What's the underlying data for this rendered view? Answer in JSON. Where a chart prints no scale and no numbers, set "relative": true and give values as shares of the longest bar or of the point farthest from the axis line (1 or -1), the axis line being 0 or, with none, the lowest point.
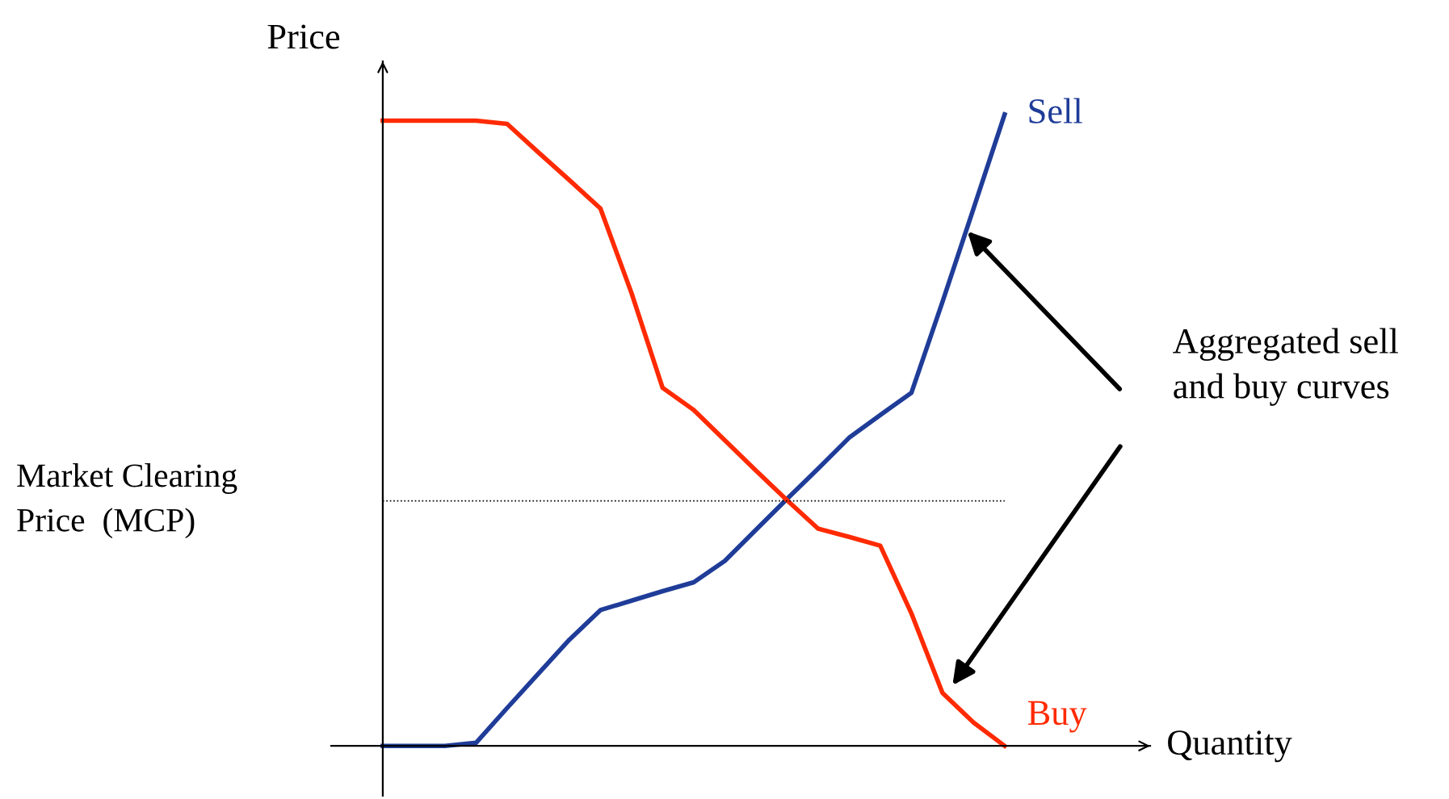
{
  "chart_data": {
    "type": "line",
    "relative": true,
    "xlabel": "Quantity",
    "ylabel": "Price",
    "categories": [
      null,
      null,
      null,
      null,
      null,
      null,
      null,
      null,
      null,
      null,
      null,
      null,
      null,
      null,
      null,
      null,
      null,
      null,
      null,
      null,
      null
    ],
    "series": [
      {
        "name": "Sell",
        "color": "#1f3c98",
        "values": [
          0,
          0,
          0,
          0.005,
          0.06,
          0.114,
          0.168,
          0.215,
          0.23,
          0.245,
          0.259,
          0.293,
          0.342,
          0.391,
          0.439,
          0.488,
          0.524,
          0.559,
          0.703,
          0.851,
          1.0
        ]
      },
      {
        "name": "Buy",
        "color": "#ff2a00",
        "values": [
          0.99,
          0.99,
          0.99,
          0.99,
          0.985,
          0.94,
          0.896,
          0.851,
          0.717,
          0.567,
          0.532,
          0.484,
          0.436,
          0.389,
          0.344,
          0.331,
          0.317,
          0.21,
          0.084,
          0.037,
          0
        ]
      }
    ],
    "ref_lines": [
      {
        "axis": "y",
        "value": 0.388,
        "label": "Market Clearing\nPrice  (MCP)",
        "color": "#000000",
        "line_style": "dotted"
      }
    ],
    "annotations": [
      "Aggregated sell\nand buy curves"
    ],
    "legend": false,
    "marker": "none",
    "line_style": "solid"
  }
}
